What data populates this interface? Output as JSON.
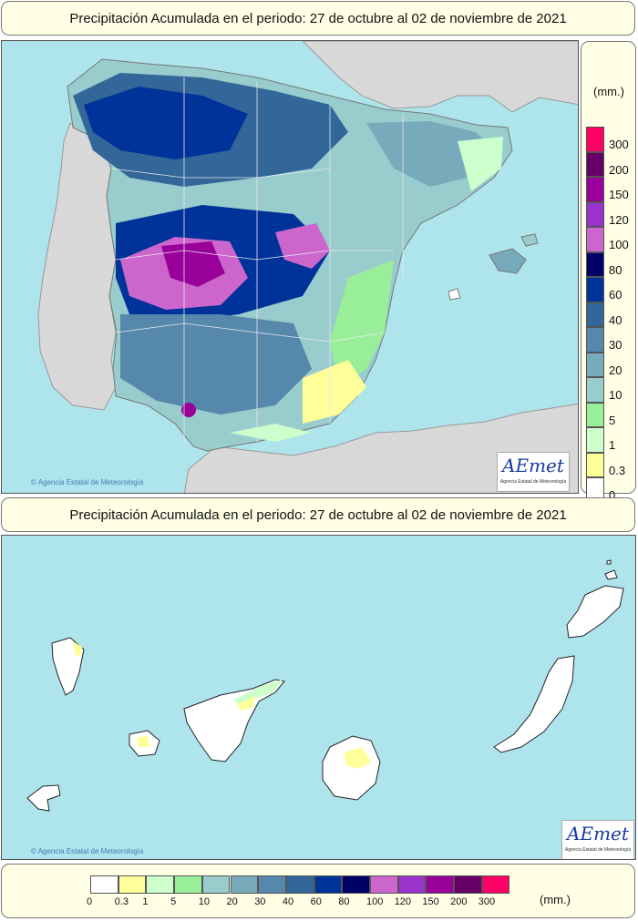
{
  "titles": {
    "peninsula": "Precipitación Acumulada en el periodo: 27 de octubre al 02 de noviembre de 2021",
    "canarias": "Precipitación Acumulada en el periodo: 27 de octubre al 02 de noviembre de 2021"
  },
  "legend": {
    "unit": "(mm.)",
    "levels": [
      "0",
      "0.3",
      "1",
      "5",
      "10",
      "20",
      "30",
      "40",
      "60",
      "80",
      "100",
      "120",
      "150",
      "200",
      "300"
    ],
    "colors": [
      "#ffffff",
      "#ffff99",
      "#ccffcc",
      "#99ee99",
      "#99cccc",
      "#77aabb",
      "#5588aa",
      "#336699",
      "#003399",
      "#000066",
      "#cc66cc",
      "#9933cc",
      "#990099",
      "#660066",
      "#ff0066"
    ]
  },
  "map_colors": {
    "sea": "#aee4ec",
    "land_foreign": "#d8d8d8",
    "land_dry": "#ffffff"
  },
  "credits": {
    "copyright": "Agencia Estatal de Meteorología",
    "logo_name": "AEmet",
    "logo_subtitle": "Agencia Estatal de Meteorología"
  }
}
